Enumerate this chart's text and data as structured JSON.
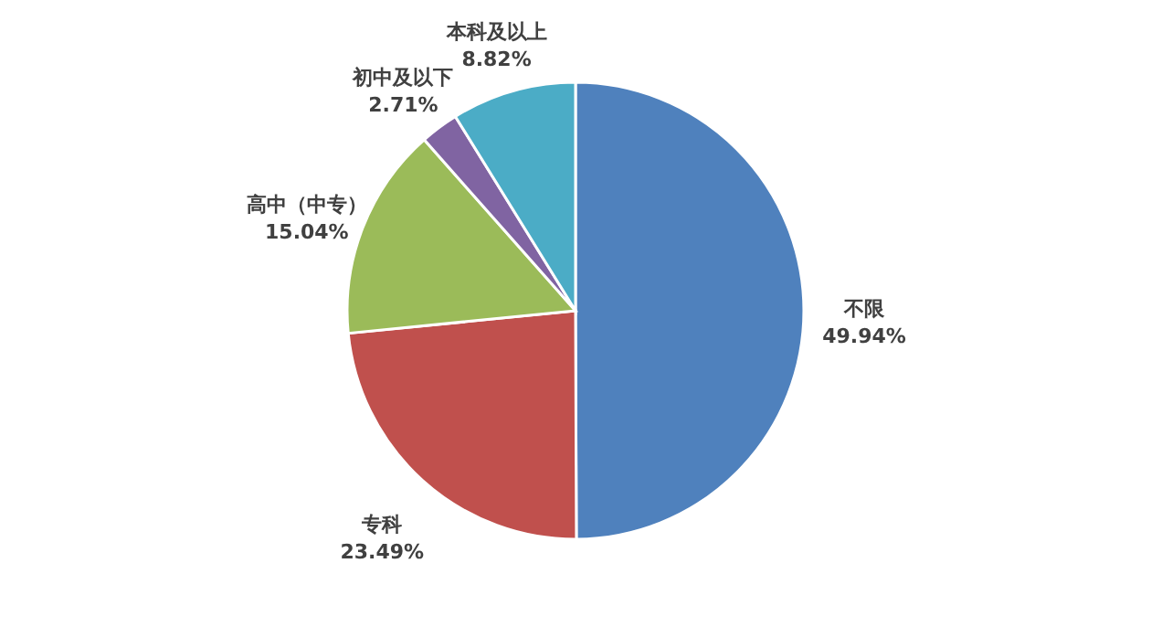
{
  "chart_data": {
    "type": "pie",
    "categories": [
      "不限",
      "专科",
      "高中（中专）",
      "初中及以下",
      "本科及以上"
    ],
    "values": [
      49.94,
      23.49,
      15.04,
      2.71,
      8.82
    ],
    "colors": [
      "#4f81bd",
      "#c0504d",
      "#9bbb59",
      "#8064a2",
      "#4bacc6"
    ],
    "value_labels": [
      "49.94%",
      "23.49%",
      "15.04%",
      "2.71%",
      "8.82%"
    ]
  }
}
